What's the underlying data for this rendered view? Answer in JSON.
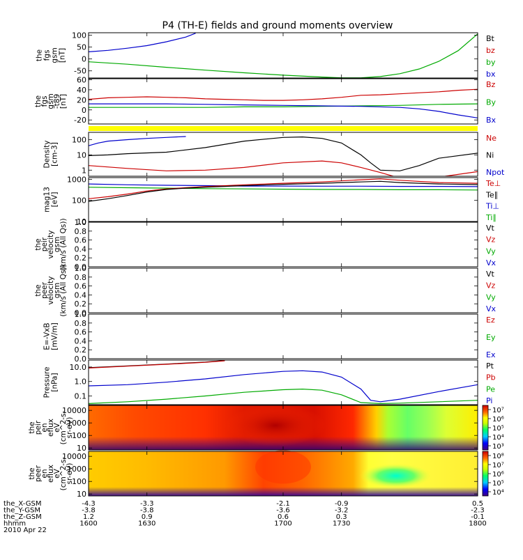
{
  "chart_data": {
    "type": "line",
    "title": "P4 (TH-E) fields and ground moments overview",
    "x_axis": {
      "time_ticks": [
        "1600",
        "1630",
        "1700",
        "1730",
        "1800"
      ],
      "rows": [
        {
          "label": "the_X-GSM",
          "values": [
            "-4.3",
            "-3.3",
            "-2.1",
            "-0.9",
            "0.5"
          ]
        },
        {
          "label": "the_Y-GSM",
          "values": [
            "-3.8",
            "-3.8",
            "-3.6",
            "-3.2",
            "-2.3"
          ]
        },
        {
          "label": "the_Z-GSM",
          "values": [
            "1.2",
            "0.9",
            "0.6",
            "0.3",
            "-0.1"
          ]
        },
        {
          "label": "hhmm",
          "values": [
            "1600",
            "1630",
            "1700",
            "1730",
            "1800"
          ]
        }
      ],
      "date": "2010 Apr 22"
    },
    "panels": [
      {
        "id": "fgs",
        "ylabel": [
          "the",
          "fgs",
          "gsm",
          "[nT]"
        ],
        "ylim": [
          -80,
          110
        ],
        "yticks": [
          "100",
          "50",
          "0",
          "-50"
        ],
        "legend": [
          {
            "name": "Bt",
            "color": "#000000"
          },
          {
            "name": "bz",
            "color": "#cc0000"
          },
          {
            "name": "by",
            "color": "#00aa00"
          },
          {
            "name": "bx",
            "color": "#0000cc"
          }
        ],
        "series": [
          {
            "name": "blue",
            "color": "#0000cc",
            "x": [
              1600,
              1610,
              1620,
              1630,
              1640,
              1650,
              1655
            ],
            "y": [
              30,
              36,
              45,
              56,
              72,
              92,
              108
            ]
          },
          {
            "name": "green",
            "color": "#00aa00",
            "x": [
              1600,
              1620,
              1640,
              1660,
              1680,
              1700,
              1720,
              1730,
              1740,
              1750,
              1760,
              1770,
              1780,
              1790,
              1800
            ],
            "y": [
              -12,
              -22,
              -35,
              -47,
              -58,
              -68,
              -76,
              -79,
              -79,
              -74,
              -62,
              -42,
              -10,
              35,
              105
            ]
          }
        ]
      },
      {
        "id": "fgs_dsl",
        "ylabel": [
          "the",
          "fgs",
          "gsm",
          "-t89",
          "[nT]"
        ],
        "ylim": [
          -28,
          62
        ],
        "yticks": [
          "60",
          "40",
          "20",
          "0",
          "-20"
        ],
        "legend": [
          {
            "name": "Bz",
            "color": "#cc0000"
          },
          {
            "name": "By",
            "color": "#00aa00"
          },
          {
            "name": "Bx",
            "color": "#0000cc"
          }
        ],
        "series": [
          {
            "name": "Bz",
            "color": "#cc0000",
            "x": [
              1600,
              1610,
              1620,
              1630,
              1640,
              1650,
              1660,
              1670,
              1680,
              1690,
              1700,
              1710,
              1720,
              1730,
              1740,
              1750,
              1760,
              1770,
              1780,
              1790,
              1800
            ],
            "y": [
              21,
              24,
              25,
              26,
              25,
              24,
              22,
              21,
              20,
              19,
              19,
              20,
              22,
              25,
              29,
              30,
              32,
              34,
              36,
              39,
              41
            ]
          },
          {
            "name": "By",
            "color": "#00aa00",
            "x": [
              1600,
              1620,
              1640,
              1660,
              1680,
              1700,
              1720,
              1740,
              1760,
              1780,
              1800
            ],
            "y": [
              5,
              5,
              5,
              5,
              6,
              6,
              7,
              8,
              9,
              11,
              12
            ]
          },
          {
            "name": "Bx",
            "color": "#0000cc",
            "x": [
              1600,
              1620,
              1640,
              1660,
              1680,
              1700,
              1720,
              1740,
              1760,
              1770,
              1780,
              1790,
              1800
            ],
            "y": [
              12,
              12,
              12,
              11,
              10,
              9,
              8,
              7,
              5,
              2,
              -3,
              -10,
              -16
            ]
          }
        ]
      },
      {
        "id": "density",
        "ylabel": [
          "Density",
          "[cm-3]"
        ],
        "log": true,
        "ylim": [
          0.4,
          300
        ],
        "yticks": [
          "100",
          "10",
          "1"
        ],
        "legend": [
          {
            "name": "Ne",
            "color": "#cc0000"
          },
          {
            "name": "Ni",
            "color": "#000000"
          },
          {
            "name": "Npot",
            "color": "#0000cc"
          }
        ],
        "series": [
          {
            "name": "Ni",
            "color": "#000000",
            "x": [
              1600,
              1610,
              1620,
              1640,
              1660,
              1680,
              1700,
              1710,
              1720,
              1730,
              1740,
              1745,
              1750,
              1760,
              1770,
              1780,
              1800
            ],
            "y": [
              9,
              10,
              12,
              15,
              30,
              80,
              140,
              150,
              120,
              60,
              10,
              3,
              1,
              0.9,
              2,
              6,
              13
            ]
          },
          {
            "name": "Ne",
            "color": "#cc0000",
            "x": [
              1600,
              1620,
              1640,
              1660,
              1680,
              1700,
              1720,
              1730,
              1740,
              1750,
              1760,
              1780,
              1800
            ],
            "y": [
              2,
              1.3,
              0.9,
              1,
              1.5,
              3,
              4,
              3,
              1.5,
              0.7,
              0.3,
              0.35,
              0.8
            ]
          },
          {
            "name": "Npot",
            "color": "#0000cc",
            "x": [
              1600,
              1605,
              1610,
              1620,
              1630,
              1640,
              1650
            ],
            "y": [
              40,
              60,
              80,
              100,
              120,
              140,
              160
            ]
          }
        ]
      },
      {
        "id": "temperature",
        "ylabel": [
          "mag13",
          "[eV]"
        ],
        "log": true,
        "ylim": [
          10,
          1200
        ],
        "yticks": [
          "1000",
          "100",
          "10"
        ],
        "legend": [
          {
            "name": "Te⊥",
            "color": "#cc0000"
          },
          {
            "name": "Te∥",
            "color": "#000000"
          },
          {
            "name": "Ti⊥",
            "color": "#0000cc"
          },
          {
            "name": "Ti∥",
            "color": "#00aa00"
          }
        ],
        "series": [
          {
            "name": "Ti⊥",
            "color": "#0000cc",
            "x": [
              1600,
              1620,
              1640,
              1660,
              1680,
              1700,
              1720,
              1740,
              1760,
              1780,
              1800
            ],
            "y": [
              600,
              550,
              520,
              500,
              480,
              480,
              470,
              470,
              460,
              460,
              450
            ]
          },
          {
            "name": "Ti∥",
            "color": "#00aa00",
            "x": [
              1600,
              1620,
              1640,
              1660,
              1680,
              1700,
              1720,
              1740,
              1760,
              1780,
              1800
            ],
            "y": [
              420,
              400,
              380,
              360,
              350,
              340,
              330,
              330,
              320,
              320,
              310
            ]
          },
          {
            "name": "Te⊥",
            "color": "#cc0000",
            "x": [
              1600,
              1610,
              1620,
              1630,
              1640,
              1650,
              1660,
              1680,
              1700,
              1720,
              1740,
              1750,
              1760,
              1780,
              1800
            ],
            "y": [
              120,
              150,
              200,
              280,
              350,
              400,
              450,
              550,
              650,
              750,
              950,
              1050,
              900,
              700,
              650
            ]
          },
          {
            "name": "Te∥",
            "color": "#000000",
            "x": [
              1600,
              1610,
              1620,
              1630,
              1640,
              1650,
              1660,
              1680,
              1700,
              1720,
              1740,
              1750,
              1760,
              1780,
              1800
            ],
            "y": [
              90,
              120,
              170,
              250,
              330,
              380,
              420,
              500,
              580,
              650,
              750,
              800,
              700,
              600,
              560
            ]
          }
        ]
      },
      {
        "id": "vi",
        "ylabel": [
          "the",
          "peir",
          "velocity",
          "gsm",
          "(km/s (All Qs))"
        ],
        "ylim": [
          0,
          1
        ],
        "yticks": [
          "1.0",
          "0.8",
          "0.6",
          "0.4",
          "0.2",
          "0.0"
        ],
        "legend": [
          {
            "name": "Vt",
            "color": "#000000"
          },
          {
            "name": "Vz",
            "color": "#cc0000"
          },
          {
            "name": "Vy",
            "color": "#00aa00"
          },
          {
            "name": "Vx",
            "color": "#0000cc"
          }
        ],
        "series": []
      },
      {
        "id": "ve",
        "ylabel": [
          "the",
          "peer",
          "velocity",
          "gsm",
          "(km/s (All Qs))"
        ],
        "ylim": [
          0,
          1
        ],
        "yticks": [
          "1.0",
          "0.8",
          "0.6",
          "0.4",
          "0.2",
          "0.0"
        ],
        "legend": [
          {
            "name": "Vt",
            "color": "#000000"
          },
          {
            "name": "Vz",
            "color": "#cc0000"
          },
          {
            "name": "Vy",
            "color": "#00aa00"
          },
          {
            "name": "Vx",
            "color": "#0000cc"
          }
        ],
        "series": []
      },
      {
        "id": "efield",
        "ylabel": [
          "E=-VxB",
          "[mV/m]"
        ],
        "ylim": [
          0,
          1
        ],
        "yticks": [
          "1.0",
          "0.8",
          "0.6",
          "0.4",
          "0.2",
          "0.0"
        ],
        "legend": [
          {
            "name": "Ez",
            "color": "#cc0000"
          },
          {
            "name": "Ey",
            "color": "#00aa00"
          },
          {
            "name": "Ex",
            "color": "#0000cc"
          }
        ],
        "series": []
      },
      {
        "id": "pressure",
        "ylabel": [
          "Pressure",
          "[nPa]"
        ],
        "log": true,
        "ylim": [
          0.025,
          30
        ],
        "yticks": [
          "10.0",
          "1.0",
          "0.1"
        ],
        "legend": [
          {
            "name": "Pt",
            "color": "#000000"
          },
          {
            "name": "Pb",
            "color": "#cc0000"
          },
          {
            "name": "Pe",
            "color": "#00aa00"
          },
          {
            "name": "Pi",
            "color": "#0000cc"
          }
        ],
        "series": [
          {
            "name": "Pt",
            "color": "#000000",
            "x": [
              1600,
              1620,
              1640,
              1660,
              1670
            ],
            "y": [
              9,
              12,
              16,
              22,
              28
            ]
          },
          {
            "name": "Pb",
            "color": "#cc0000",
            "x": [
              1600,
              1620,
              1640,
              1660,
              1670
            ],
            "y": [
              8.5,
              11.5,
              15.5,
              21,
              27
            ]
          },
          {
            "name": "Pi",
            "color": "#0000cc",
            "x": [
              1600,
              1620,
              1640,
              1660,
              1680,
              1700,
              1710,
              1720,
              1730,
              1740,
              1745,
              1750,
              1760,
              1780,
              1800
            ],
            "y": [
              0.5,
              0.6,
              0.9,
              1.5,
              3,
              5,
              5.5,
              4.5,
              2,
              0.3,
              0.05,
              0.04,
              0.06,
              0.2,
              0.6
            ]
          },
          {
            "name": "Pe",
            "color": "#00aa00",
            "x": [
              1600,
              1620,
              1640,
              1660,
              1680,
              1700,
              1710,
              1720,
              1730,
              1740,
              1750,
              1760,
              1780,
              1800
            ],
            "y": [
              0.03,
              0.04,
              0.06,
              0.1,
              0.18,
              0.27,
              0.3,
              0.25,
              0.12,
              0.035,
              0.03,
              0.032,
              0.04,
              0.05
            ]
          }
        ]
      },
      {
        "id": "peir_eflux",
        "type": "heatmap",
        "ylabel": [
          "the",
          "peir",
          "en",
          "eflux",
          "eV",
          "(cm^2-s-",
          "sr-eV)"
        ],
        "log": true,
        "ylim": [
          7,
          25000
        ],
        "yticks": [
          "10000",
          "1000",
          "100",
          "10"
        ],
        "colorbar_ticks": [
          "10⁷",
          "10⁶",
          "10⁵",
          "10⁴",
          "10³"
        ]
      },
      {
        "id": "peer_eflux",
        "type": "heatmap",
        "ylabel": [
          "the",
          "peer",
          "en",
          "eflux",
          "eV",
          "(cm^2-s-",
          "sr-eV)"
        ],
        "log": true,
        "ylim": [
          7,
          25000
        ],
        "yticks": [
          "10000",
          "1000",
          "100",
          "10"
        ],
        "colorbar_ticks": [
          "10⁸",
          "10⁷",
          "10⁶",
          "10⁵",
          "10⁴"
        ]
      }
    ]
  }
}
